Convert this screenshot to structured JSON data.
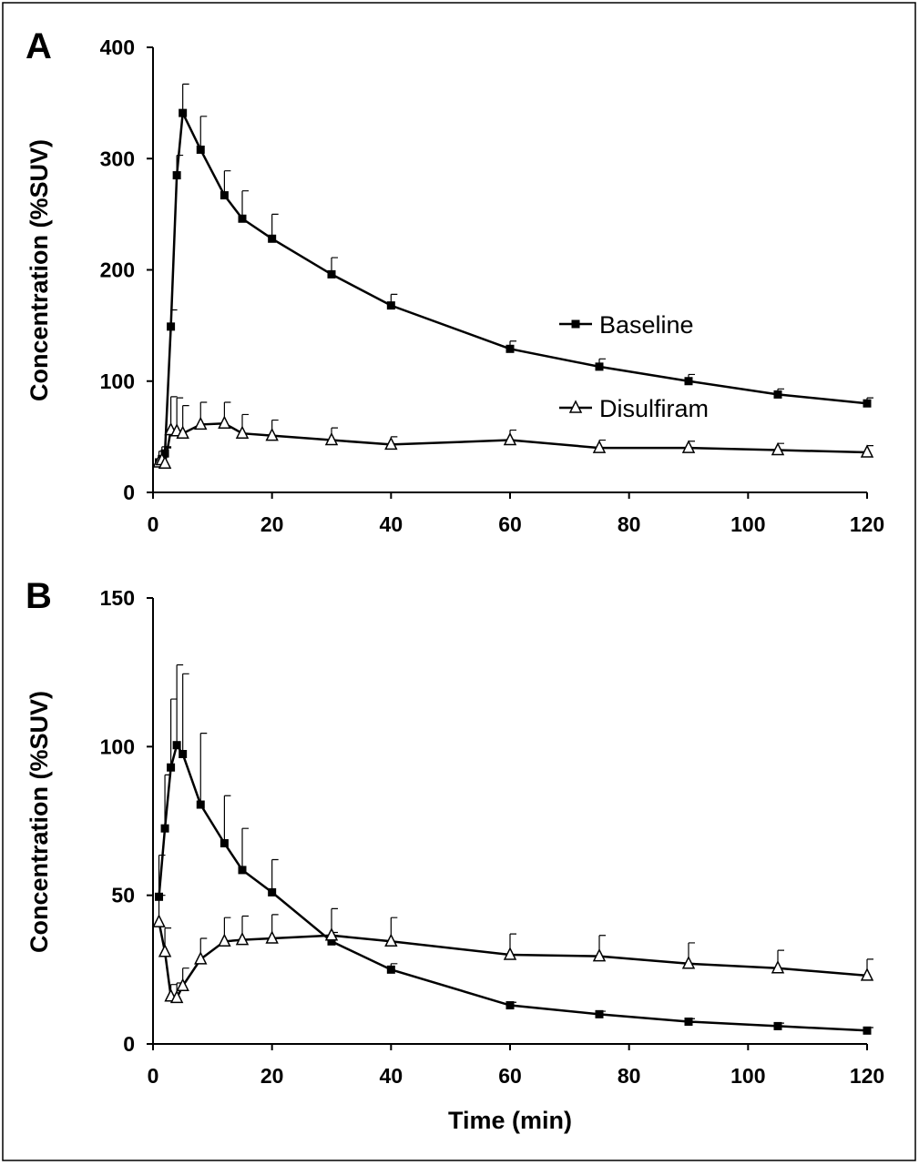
{
  "chart_data": [
    {
      "type": "line",
      "panel_label": "A",
      "xlabel": "",
      "ylabel": "Concentration (%SUV)",
      "xlim": [
        0,
        120
      ],
      "ylim": [
        0,
        400
      ],
      "x_ticks": [
        0,
        20,
        40,
        60,
        80,
        100,
        120
      ],
      "y_ticks": [
        0,
        100,
        200,
        300,
        400
      ],
      "grid": false,
      "legend": "center-right",
      "series": [
        {
          "name": "Baseline",
          "marker": "filled-square",
          "x": [
            1,
            1.5,
            2,
            3,
            4,
            5,
            8,
            12,
            15,
            20,
            30,
            40,
            60,
            75,
            90,
            105,
            120
          ],
          "y": [
            27,
            30,
            35,
            149,
            285,
            341,
            308,
            267,
            246,
            228,
            196,
            168,
            129,
            113,
            100,
            88,
            80
          ],
          "error": [
            5,
            6,
            6,
            15,
            18,
            26,
            30,
            22,
            25,
            22,
            15,
            10,
            7,
            7,
            6,
            5,
            5
          ]
        },
        {
          "name": "Disulfiram",
          "marker": "open-triangle",
          "x": [
            1,
            1.5,
            2,
            3,
            4,
            5,
            8,
            12,
            15,
            20,
            30,
            40,
            60,
            75,
            90,
            105,
            120
          ],
          "y": [
            27,
            29,
            26,
            56,
            55,
            53,
            61,
            62,
            53,
            51,
            47,
            43,
            47,
            40,
            40,
            38,
            36
          ],
          "error": [
            10,
            12,
            14,
            30,
            30,
            25,
            20,
            19,
            17,
            14,
            11,
            7,
            9,
            7,
            6,
            6,
            6
          ]
        }
      ]
    },
    {
      "type": "line",
      "panel_label": "B",
      "xlabel": "Time (min)",
      "ylabel": "Concentration (%SUV)",
      "xlim": [
        0,
        120
      ],
      "ylim": [
        0,
        150
      ],
      "x_ticks": [
        0,
        20,
        40,
        60,
        80,
        100,
        120
      ],
      "y_ticks": [
        0,
        50,
        100,
        150
      ],
      "grid": false,
      "series": [
        {
          "name": "Baseline",
          "marker": "filled-square",
          "x": [
            1,
            2,
            3,
            4,
            5,
            8,
            12,
            15,
            20,
            30,
            40,
            60,
            75,
            90,
            105,
            120
          ],
          "y": [
            49.5,
            72.5,
            93,
            100.5,
            97.5,
            80.5,
            67.5,
            58.5,
            51,
            34.5,
            25,
            13,
            10,
            7.5,
            6,
            4.5
          ],
          "error": [
            14,
            18,
            23,
            27,
            27,
            24,
            16,
            14,
            11,
            3,
            2,
            1,
            1,
            1,
            1,
            1
          ]
        },
        {
          "name": "Disulfiram",
          "marker": "open-triangle",
          "x": [
            1,
            2,
            3,
            4,
            5,
            8,
            12,
            15,
            20,
            30,
            40,
            60,
            75,
            90,
            105,
            120
          ],
          "y": [
            41,
            31,
            16,
            15.5,
            19.5,
            28.5,
            34.5,
            35,
            35.5,
            36.5,
            34.5,
            30,
            29.5,
            27,
            25.5,
            23
          ],
          "error": [
            9,
            8,
            4,
            5,
            6,
            7,
            8,
            8,
            8,
            9,
            8,
            7,
            7,
            7,
            6,
            5.5
          ]
        }
      ]
    }
  ]
}
